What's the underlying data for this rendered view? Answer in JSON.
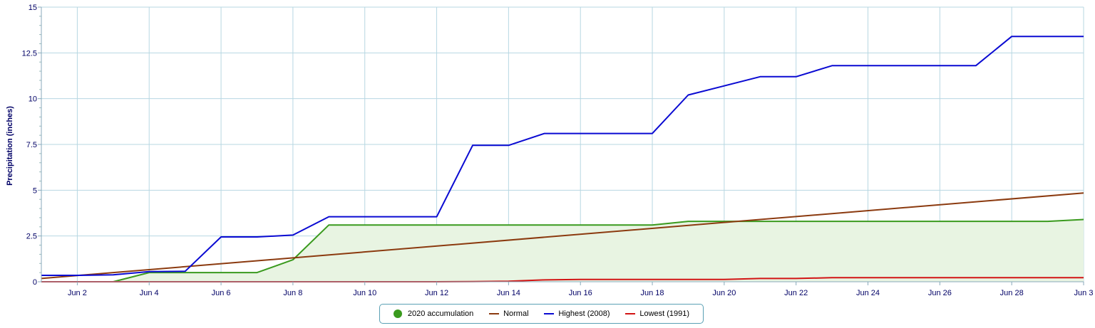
{
  "chart_data": {
    "type": "line",
    "ylabel": "Precipitation (inches)",
    "xlabel": "",
    "x_start_day": 1,
    "x_end_day": 30,
    "x_ticks": [
      {
        "day": 2,
        "label": "Jun 2"
      },
      {
        "day": 4,
        "label": "Jun 4"
      },
      {
        "day": 6,
        "label": "Jun 6"
      },
      {
        "day": 8,
        "label": "Jun 8"
      },
      {
        "day": 10,
        "label": "Jun 10"
      },
      {
        "day": 12,
        "label": "Jun 12"
      },
      {
        "day": 14,
        "label": "Jun 14"
      },
      {
        "day": 16,
        "label": "Jun 16"
      },
      {
        "day": 18,
        "label": "Jun 18"
      },
      {
        "day": 20,
        "label": "Jun 20"
      },
      {
        "day": 22,
        "label": "Jun 22"
      },
      {
        "day": 24,
        "label": "Jun 24"
      },
      {
        "day": 26,
        "label": "Jun 26"
      },
      {
        "day": 28,
        "label": "Jun 28"
      },
      {
        "day": 30,
        "label": "Jun 3"
      }
    ],
    "ylim": [
      0,
      15
    ],
    "y_ticks": [
      {
        "value": 0,
        "label": "0"
      },
      {
        "value": 2.5,
        "label": "2.5"
      },
      {
        "value": 5,
        "label": "5"
      },
      {
        "value": 7.5,
        "label": "7.5"
      },
      {
        "value": 10,
        "label": "10"
      },
      {
        "value": 12.5,
        "label": "12.5"
      },
      {
        "value": 15,
        "label": "15"
      }
    ],
    "grid": true,
    "legend_position": "bottom-center",
    "series": [
      {
        "name": "2020 accumulation",
        "color": "#3a9a1e",
        "fill": "#e8f4e2",
        "legend_marker": "dot",
        "points": [
          [
            1,
            0
          ],
          [
            2,
            0
          ],
          [
            3,
            0
          ],
          [
            4,
            0.5
          ],
          [
            5,
            0.5
          ],
          [
            6,
            0.5
          ],
          [
            7,
            0.5
          ],
          [
            8,
            1.2
          ],
          [
            9,
            3.1
          ],
          [
            10,
            3.1
          ],
          [
            11,
            3.1
          ],
          [
            12,
            3.1
          ],
          [
            13,
            3.1
          ],
          [
            14,
            3.1
          ],
          [
            15,
            3.1
          ],
          [
            16,
            3.1
          ],
          [
            17,
            3.1
          ],
          [
            18,
            3.1
          ],
          [
            19,
            3.3
          ],
          [
            20,
            3.3
          ],
          [
            21,
            3.3
          ],
          [
            22,
            3.3
          ],
          [
            23,
            3.3
          ],
          [
            24,
            3.3
          ],
          [
            25,
            3.3
          ],
          [
            26,
            3.3
          ],
          [
            27,
            3.3
          ],
          [
            28,
            3.3
          ],
          [
            29,
            3.3
          ],
          [
            30,
            3.4
          ]
        ]
      },
      {
        "name": "Normal",
        "color": "#8b3a0f",
        "legend_marker": "line",
        "points": [
          [
            1,
            0.18
          ],
          [
            30,
            4.85
          ]
        ]
      },
      {
        "name": "Highest (2008)",
        "color": "#0a0ad2",
        "legend_marker": "line",
        "points": [
          [
            1,
            0.35
          ],
          [
            2,
            0.35
          ],
          [
            3,
            0.38
          ],
          [
            4,
            0.55
          ],
          [
            5,
            0.57
          ],
          [
            6,
            2.45
          ],
          [
            7,
            2.45
          ],
          [
            8,
            2.55
          ],
          [
            9,
            3.55
          ],
          [
            10,
            3.55
          ],
          [
            11,
            3.55
          ],
          [
            12,
            3.55
          ],
          [
            13,
            7.45
          ],
          [
            14,
            7.45
          ],
          [
            15,
            8.1
          ],
          [
            16,
            8.1
          ],
          [
            17,
            8.1
          ],
          [
            18,
            8.1
          ],
          [
            19,
            10.2
          ],
          [
            20,
            10.7
          ],
          [
            21,
            11.2
          ],
          [
            22,
            11.2
          ],
          [
            23,
            11.8
          ],
          [
            24,
            11.8
          ],
          [
            25,
            11.8
          ],
          [
            26,
            11.8
          ],
          [
            27,
            11.8
          ],
          [
            28,
            13.4
          ],
          [
            29,
            13.4
          ],
          [
            30,
            13.4
          ]
        ]
      },
      {
        "name": "Lowest (1991)",
        "color": "#d21414",
        "legend_marker": "line",
        "points": [
          [
            1,
            0
          ],
          [
            12,
            0
          ],
          [
            13,
            0.01
          ],
          [
            14,
            0.03
          ],
          [
            15,
            0.1
          ],
          [
            16,
            0.13
          ],
          [
            17,
            0.13
          ],
          [
            18,
            0.13
          ],
          [
            19,
            0.13
          ],
          [
            20,
            0.13
          ],
          [
            21,
            0.18
          ],
          [
            22,
            0.18
          ],
          [
            23,
            0.22
          ],
          [
            24,
            0.22
          ],
          [
            25,
            0.22
          ],
          [
            26,
            0.22
          ],
          [
            27,
            0.22
          ],
          [
            28,
            0.22
          ],
          [
            29,
            0.22
          ],
          [
            30,
            0.22
          ]
        ]
      }
    ]
  }
}
